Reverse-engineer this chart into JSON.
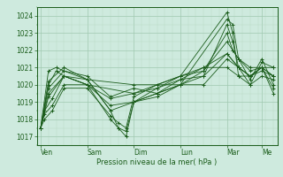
{
  "bg_color": "#ceeade",
  "line_color": "#1a5c1a",
  "grid_color_major": "#a0c8b0",
  "grid_color_minor": "#b8d8c4",
  "ylabel_values": [
    1017,
    1018,
    1019,
    1020,
    1021,
    1022,
    1023,
    1024
  ],
  "ylim": [
    1016.5,
    1024.5
  ],
  "xlabel": "Pression niveau de la mer( hPa )",
  "day_labels": [
    "Ven",
    "Sam",
    "Dim",
    "Lun",
    "Mar",
    "Me"
  ],
  "day_positions": [
    0,
    24,
    48,
    72,
    96,
    114
  ],
  "xlim": [
    -2,
    122
  ],
  "series": [
    [
      0,
      1017.5,
      4,
      1020.8,
      8,
      1021.0,
      12,
      1020.8,
      24,
      1020.3,
      48,
      1020.0,
      72,
      1020.0,
      96,
      1023.8,
      99,
      1023.5,
      102,
      1021.5,
      108,
      1021.0,
      114,
      1021.0,
      120,
      1021.0
    ],
    [
      0,
      1017.5,
      4,
      1020.0,
      8,
      1020.8,
      12,
      1020.5,
      24,
      1020.0,
      48,
      1019.5,
      72,
      1020.5,
      96,
      1024.2,
      99,
      1023.0,
      102,
      1020.5,
      108,
      1020.5,
      114,
      1021.0,
      120,
      1019.5
    ],
    [
      0,
      1017.5,
      2,
      1018.5,
      6,
      1019.2,
      12,
      1020.5,
      24,
      1020.3,
      36,
      1018.5,
      40,
      1017.5,
      44,
      1017.3,
      48,
      1019.0,
      60,
      1019.5,
      72,
      1020.0,
      84,
      1020.0,
      96,
      1021.5,
      102,
      1021.0,
      108,
      1020.5,
      114,
      1021.0,
      120,
      1019.8
    ],
    [
      0,
      1017.5,
      2,
      1018.3,
      6,
      1018.8,
      12,
      1020.0,
      24,
      1020.0,
      36,
      1018.0,
      40,
      1017.5,
      44,
      1017.0,
      48,
      1019.0,
      60,
      1019.8,
      72,
      1020.3,
      84,
      1020.5,
      96,
      1021.8,
      102,
      1021.0,
      108,
      1020.0,
      114,
      1021.3,
      120,
      1021.0
    ],
    [
      0,
      1017.5,
      2,
      1018.0,
      6,
      1018.5,
      12,
      1019.8,
      24,
      1019.8,
      36,
      1018.2,
      40,
      1017.8,
      44,
      1017.5,
      48,
      1019.3,
      60,
      1020.0,
      72,
      1020.5,
      84,
      1020.8,
      96,
      1022.5,
      102,
      1021.5,
      108,
      1020.3,
      114,
      1021.5,
      120,
      1020.0
    ],
    [
      0,
      1017.5,
      4,
      1019.8,
      12,
      1020.8,
      24,
      1020.5,
      36,
      1019.3,
      48,
      1019.8,
      60,
      1019.5,
      72,
      1020.0,
      84,
      1020.5,
      96,
      1023.5,
      99,
      1022.5,
      102,
      1021.0,
      108,
      1020.5,
      114,
      1021.0,
      120,
      1020.5
    ],
    [
      0,
      1017.5,
      4,
      1020.2,
      12,
      1021.0,
      24,
      1020.3,
      36,
      1018.5,
      48,
      1019.0,
      60,
      1019.3,
      72,
      1020.0,
      84,
      1020.8,
      96,
      1023.0,
      99,
      1022.0,
      102,
      1021.5,
      108,
      1020.8,
      114,
      1021.0,
      120,
      1020.5
    ],
    [
      0,
      1017.5,
      4,
      1019.3,
      12,
      1020.5,
      24,
      1020.0,
      36,
      1018.8,
      48,
      1019.0,
      60,
      1019.5,
      72,
      1020.3,
      84,
      1021.0,
      96,
      1021.0,
      102,
      1020.5,
      108,
      1020.0,
      114,
      1020.5,
      120,
      1020.3
    ],
    [
      0,
      1017.5,
      4,
      1019.5,
      12,
      1020.5,
      24,
      1020.0,
      36,
      1019.2,
      48,
      1019.5,
      60,
      1019.8,
      72,
      1020.5,
      84,
      1021.0,
      96,
      1021.8,
      102,
      1021.0,
      108,
      1020.5,
      114,
      1020.8,
      120,
      1020.5
    ]
  ]
}
